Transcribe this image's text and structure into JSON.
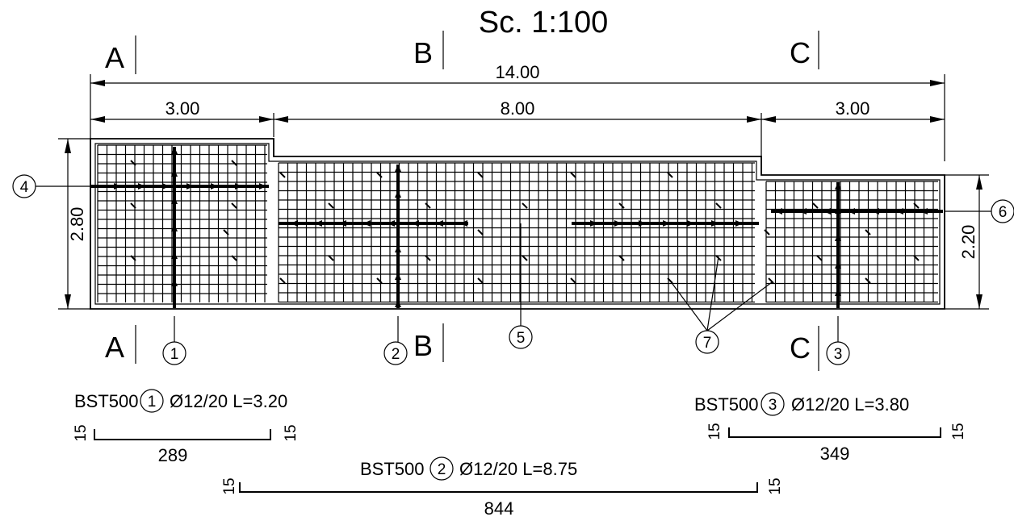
{
  "scale_label": "Sc. 1:100",
  "sections": {
    "a_top": "A",
    "b_top": "B",
    "c_top": "C",
    "a_bottom": "A",
    "b_bottom": "B",
    "c_bottom": "C"
  },
  "dimensions": {
    "overall_length": "14.00",
    "segment_left": "3.00",
    "segment_middle": "8.00",
    "segment_right": "3.00",
    "height_left": "2.80",
    "height_right": "2.20"
  },
  "markers": [
    "1",
    "2",
    "3",
    "4",
    "5",
    "6",
    "7"
  ],
  "bar_schedule": [
    {
      "steel": "BST500",
      "mark": "1",
      "spec": "Ø12/20 L=3.20",
      "hook_left": "15",
      "length": "289",
      "hook_right": "15"
    },
    {
      "steel": "BST500",
      "mark": "2",
      "spec": "Ø12/20 L=8.75",
      "hook_left": "15",
      "length": "844",
      "hook_right": "15"
    },
    {
      "steel": "BST500",
      "mark": "3",
      "spec": "Ø12/20 L=3.80",
      "hook_left": "15",
      "length": "349",
      "hook_right": "15"
    }
  ]
}
